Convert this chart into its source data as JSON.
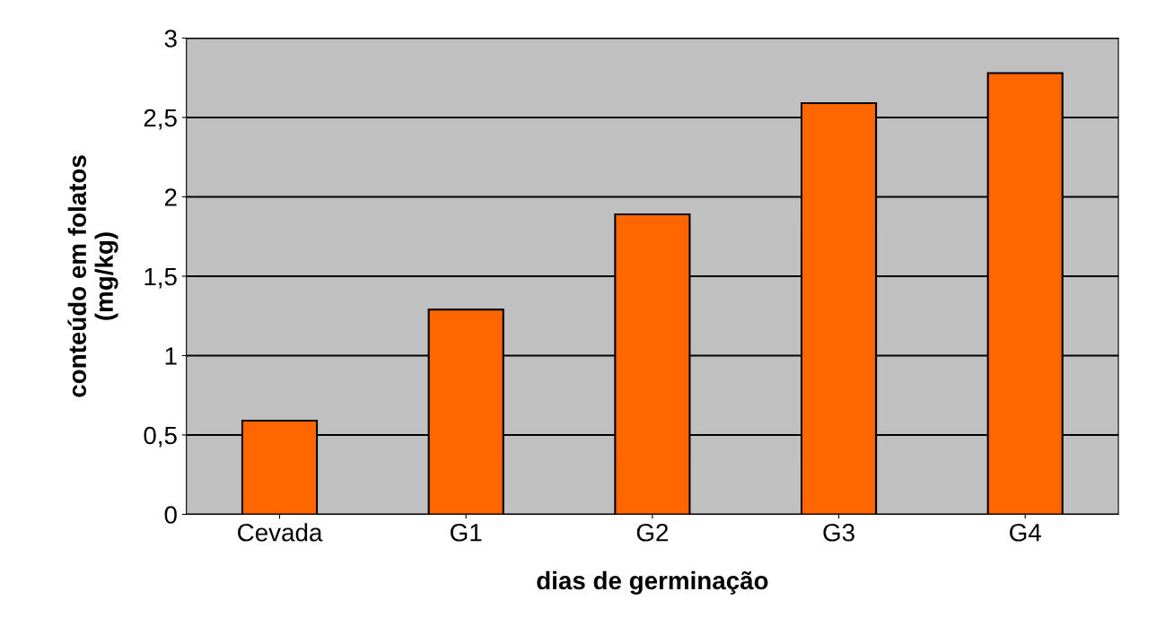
{
  "chart_data": {
    "type": "bar",
    "xlabel": "dias de germinação",
    "ylabel": "conteúdo em folatos\n(mg/kg)",
    "categories": [
      "Cevada",
      "G1",
      "G2",
      "G3",
      "G4"
    ],
    "values": [
      0.59,
      1.29,
      1.89,
      2.59,
      2.78
    ],
    "color": "#ff6600",
    "ylim": [
      0,
      3
    ],
    "yticks": [
      0,
      {
        "value": 0.5,
        "label": "0,5"
      },
      1,
      {
        "value": 1.5,
        "label": "1,5"
      },
      2,
      {
        "value": 2.5,
        "label": "2,5"
      },
      3
    ],
    "grid": "y"
  }
}
